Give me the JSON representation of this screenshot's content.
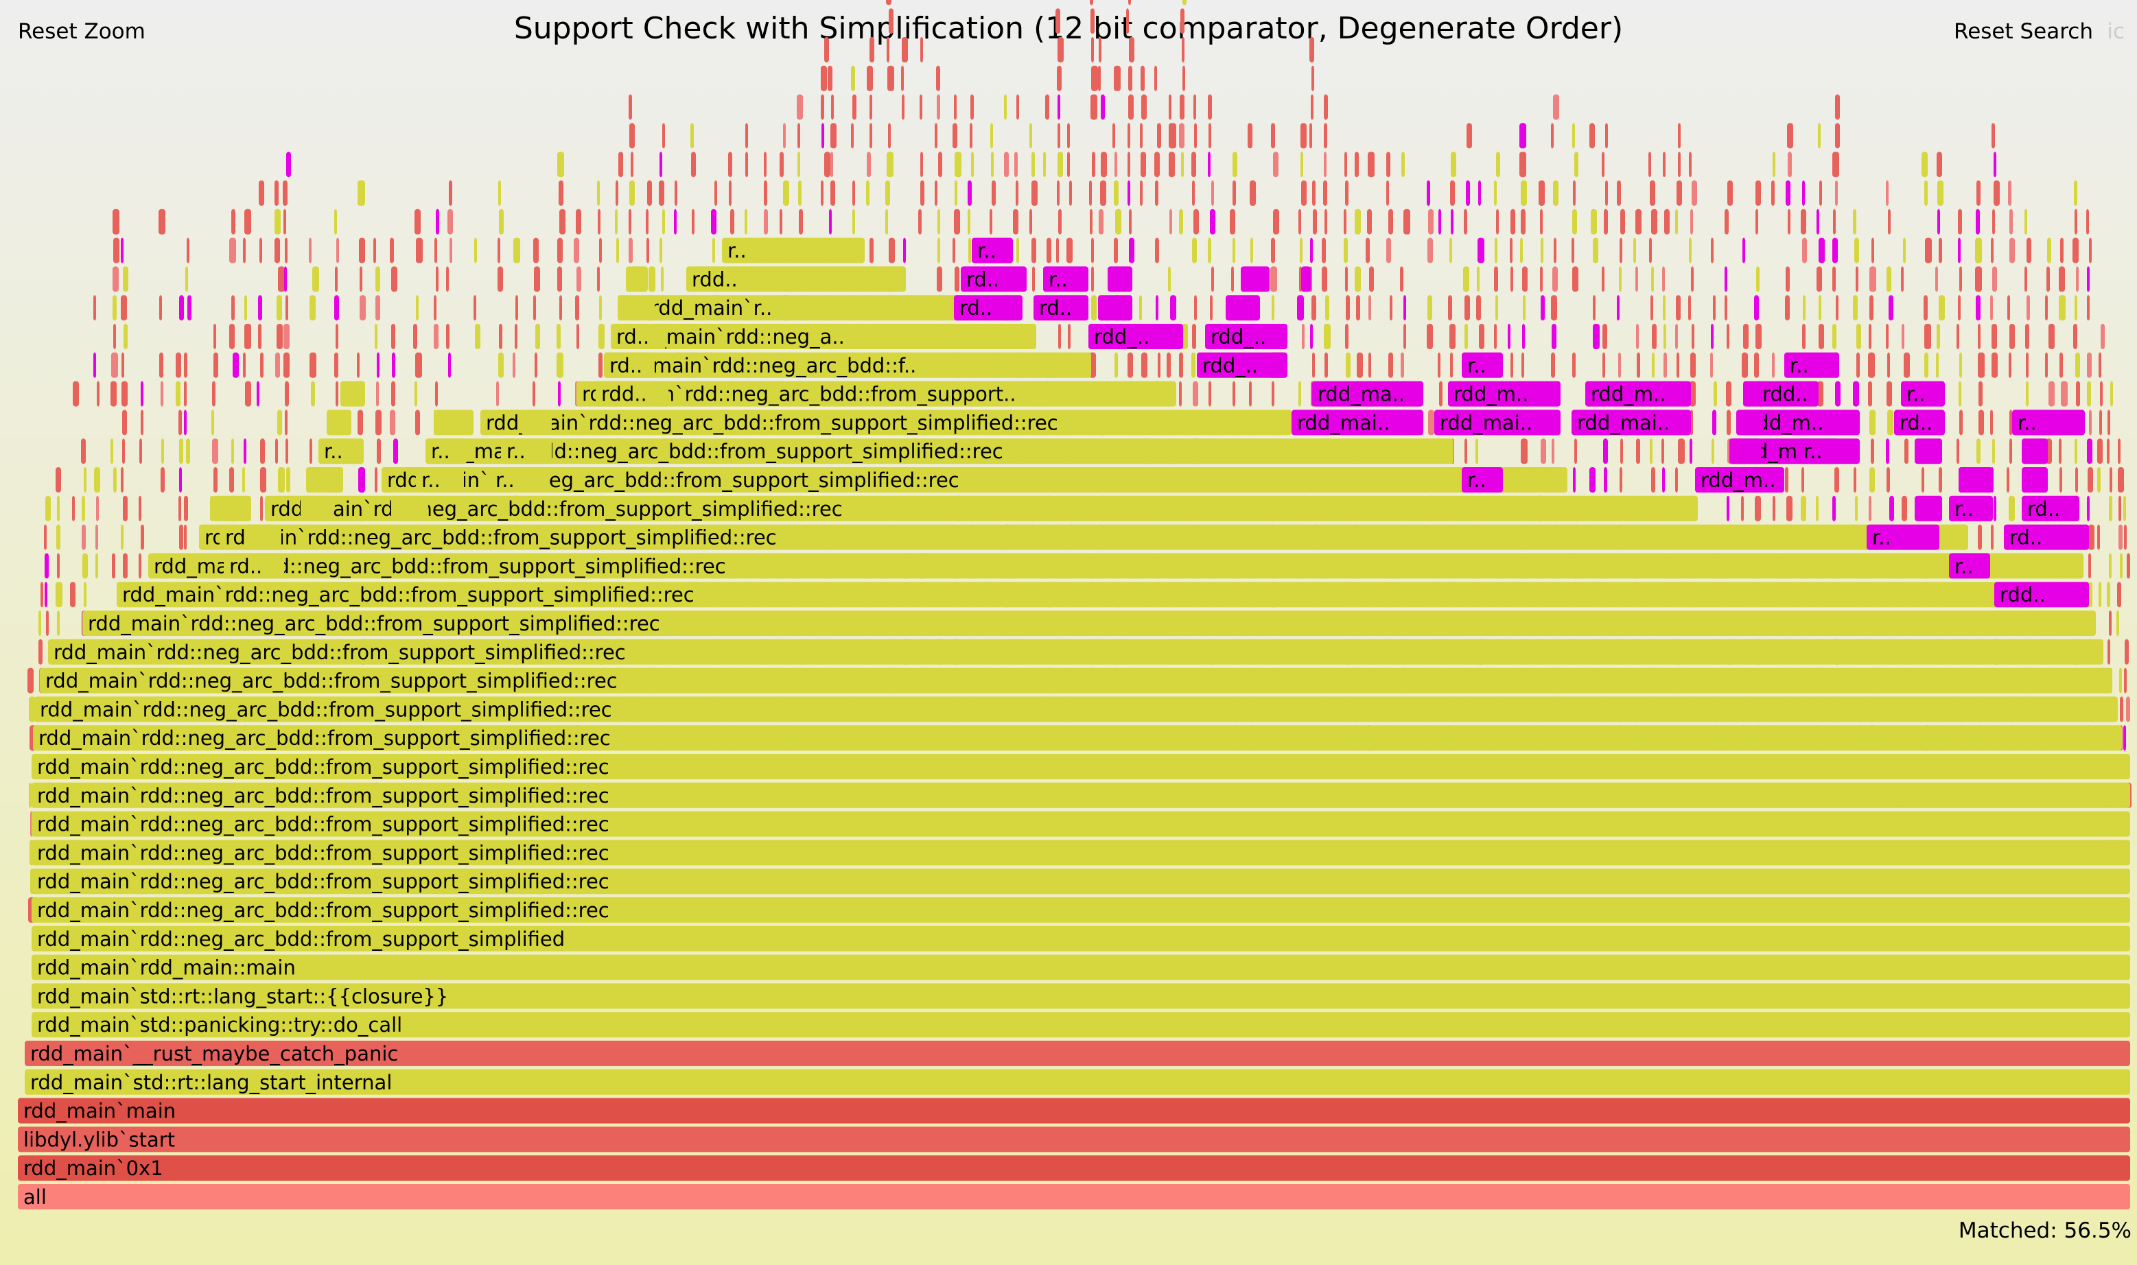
{
  "title": "Support Check with Simplification (12 bit comparator, Degenerate Order)",
  "controls": {
    "reset_zoom": "Reset Zoom",
    "reset_search": "Reset Search",
    "ic": "ic"
  },
  "status": {
    "matched": "Matched: 56.5%"
  },
  "colors": {
    "yellow": "#d6d63e",
    "red": "#e8625c",
    "red_dark": "#de5048",
    "salmon": "#fc817b",
    "magenta": "#e600e6",
    "pink": "#ee8080"
  },
  "frames": [
    {
      "d": 0,
      "l": "all",
      "c": "salmon"
    },
    {
      "d": 1,
      "l": "rdd_main`0x1",
      "c": "red_dark"
    },
    {
      "d": 2,
      "l": "libdyl.ylib`start",
      "c": "red"
    },
    {
      "d": 3,
      "l": "rdd_main`main",
      "c": "red_dark"
    },
    {
      "d": 4,
      "l": "rdd_main`std::rt::lang_start_internal",
      "c": "yellow"
    },
    {
      "d": 5,
      "l": "rdd_main`__rust_maybe_catch_panic",
      "c": "red"
    },
    {
      "d": 6,
      "l": "rdd_main`std::panicking::try::do_call",
      "c": "yellow"
    },
    {
      "d": 7,
      "l": "rdd_main`std::rt::lang_start::{{closure}}",
      "c": "yellow"
    },
    {
      "d": 8,
      "l": "rdd_main`rdd_main::main",
      "c": "yellow"
    },
    {
      "d": 9,
      "l": "rdd_main`rdd::neg_arc_bdd::from_support_simplified",
      "c": "yellow"
    },
    {
      "d": 10,
      "l": "rdd_main`rdd::neg_arc_bdd::from_support_simplified::rec",
      "c": "yellow"
    },
    {
      "d": 11,
      "l": "rdd_main`rdd::neg_arc_bdd::from_support_simplified::rec",
      "c": "yellow"
    },
    {
      "d": 12,
      "l": "rdd_main`rdd::neg_arc_bdd::from_support_simplified::rec",
      "c": "yellow"
    },
    {
      "d": 13,
      "l": "rdd_main`rdd::neg_arc_bdd::from_support_simplified::rec",
      "c": "yellow"
    },
    {
      "d": 14,
      "l": "rdd_main`rdd::neg_arc_bdd::from_support_simplified::rec",
      "c": "yellow"
    },
    {
      "d": 15,
      "l": "rdd_main`rdd::neg_arc_bdd::from_support_simplified::rec",
      "c": "yellow"
    },
    {
      "d": 16,
      "l": "rdd_main`rdd::neg_arc_bdd::from_support_simplified::rec",
      "c": "yellow"
    },
    {
      "d": 17,
      "l": "rdd_main`rdd::neg_arc_bdd::from_support_simplified::rec",
      "c": "yellow"
    },
    {
      "d": 18,
      "l": "rdd_main`rdd::neg_arc_bdd::from_support_simplified::rec",
      "c": "yellow"
    },
    {
      "d": 19,
      "l": "rdd_main`rdd::neg_arc_bdd::from_support_simplified::rec",
      "c": "yellow"
    },
    {
      "d": 20,
      "l": "rdd_main`rdd::neg_arc_bdd::from_support_simplified::rec",
      "c": "yellow"
    },
    {
      "d": 21,
      "l": "rdd_main`rdd::neg_arc_bdd::from_support_simplified::rec",
      "c": "yellow"
    },
    {
      "d": 22,
      "l": "rdd_main`rdd::neg_arc_bdd::from_support_simplified::rec",
      "c": "yellow"
    },
    {
      "d": 23,
      "l": "rdd_main`rdd::neg_arc_bdd::from_support_simplified::rec",
      "c": "yellow"
    },
    {
      "d": 24,
      "l": "rdd_main`rdd::neg_arc_bdd::from_support_simplified::rec",
      "c": "yellow"
    },
    {
      "d": 25,
      "l": "rdd_main`rdd::neg_arc_bdd::from_support_simplified::rec",
      "c": "yellow"
    },
    {
      "d": 26,
      "l": "rdd_main`rdd::neg_arc_bdd::from_support_simplified::rec",
      "c": "yellow"
    },
    {
      "d": 27,
      "l": "rdd_main`rdd::neg_arc_bdd::from_support_simplified::rec",
      "c": "yellow"
    },
    {
      "d": 28,
      "l": "rdd_main`rdd::neg_arc_bdd::from_support..",
      "c": "yellow"
    },
    {
      "d": 29,
      "l": "rdd_main`rdd::neg_arc_bdd::f..",
      "c": "yellow"
    },
    {
      "d": 30,
      "l": "rdd_main`rdd::neg_a..",
      "c": "yellow"
    },
    {
      "d": 31,
      "l": "rdd_main`r..",
      "c": "yellow"
    },
    {
      "d": 32,
      "l": "rdd..",
      "c": "yellow"
    },
    {
      "d": 33,
      "l": "r..",
      "c": "yellow"
    },
    {
      "d": 27,
      "l": "rdd_mai..",
      "c": "magenta"
    },
    {
      "d": 28,
      "l": "rdd_ma..",
      "c": "magenta"
    },
    {
      "d": 27,
      "l": "rdd_mai..",
      "c": "magenta"
    },
    {
      "d": 28,
      "l": "rdd_m..",
      "c": "magenta"
    },
    {
      "d": 29,
      "l": "rdd_..",
      "c": "magenta"
    },
    {
      "d": 27,
      "l": "rdd_mai..",
      "c": "magenta"
    },
    {
      "d": 28,
      "l": "rdd_m..",
      "c": "magenta"
    },
    {
      "d": 25,
      "l": "rdd_main`r..",
      "c": "magenta"
    },
    {
      "d": 26,
      "l": "rdd_ma..",
      "c": "magenta"
    },
    {
      "d": 27,
      "l": "rdd_m..",
      "c": "magenta"
    },
    {
      "d": 28,
      "l": "rdd..",
      "c": "magenta"
    },
    {
      "d": 29,
      "l": "r..",
      "c": "magenta"
    },
    {
      "d": 26,
      "l": "rdd_main..",
      "c": "magenta"
    },
    {
      "d": 27,
      "l": "rdd_ma..",
      "c": "magenta"
    },
    {
      "d": 28,
      "l": "rdd_m..",
      "c": "magenta"
    },
    {
      "d": 24,
      "l": "rdd..",
      "c": "magenta"
    },
    {
      "d": 23,
      "l": "r..",
      "c": "magenta"
    },
    {
      "d": 22,
      "l": "rdd..",
      "c": "magenta"
    },
    {
      "d": 21,
      "l": "rdd..",
      "c": "magenta"
    },
    {
      "d": 24,
      "l": "rd..",
      "c": "magenta"
    },
    {
      "d": 25,
      "l": "rd..",
      "c": "magenta"
    },
    {
      "d": 26,
      "l": "r..",
      "c": "magenta"
    },
    {
      "d": 27,
      "l": "r..",
      "c": "magenta"
    },
    {
      "d": 23,
      "l": "rd..",
      "c": "magenta"
    },
    {
      "d": 24,
      "l": "rd..",
      "c": "magenta"
    },
    {
      "d": 25,
      "l": "l..",
      "c": "magenta"
    },
    {
      "d": 26,
      "l": "l..",
      "c": "magenta"
    },
    {
      "d": 25,
      "l": "rdd_..",
      "c": "magenta"
    },
    {
      "d": 26,
      "l": "rd..",
      "c": "magenta"
    },
    {
      "d": 27,
      "l": "rd..",
      "c": "magenta"
    },
    {
      "d": 28,
      "l": "r..",
      "c": "magenta"
    },
    {
      "d": 24,
      "l": "r..",
      "c": "yellow"
    },
    {
      "d": 23,
      "l": "rd..",
      "c": "yellow"
    },
    {
      "d": 22,
      "l": "rd..",
      "c": "yellow"
    },
    {
      "d": 23,
      "l": "r..",
      "c": "yellow"
    },
    {
      "d": 24,
      "l": "rd..",
      "c": "yellow"
    },
    {
      "d": 25,
      "l": "rd..",
      "c": "yellow"
    },
    {
      "d": 26,
      "l": "r..",
      "c": "yellow"
    },
    {
      "d": 27,
      "l": "rd..",
      "c": "yellow"
    },
    {
      "d": 28,
      "l": "r..",
      "c": "yellow"
    },
    {
      "d": 24,
      "l": "rd..",
      "c": "yellow"
    },
    {
      "d": 25,
      "l": "rd..",
      "c": "yellow"
    },
    {
      "d": 26,
      "l": "rd..",
      "c": "yellow"
    },
    {
      "d": 27,
      "l": "r..",
      "c": "yellow"
    },
    {
      "d": 25,
      "l": "r..",
      "c": "yellow"
    },
    {
      "d": 26,
      "l": "r..",
      "c": "yellow"
    },
    {
      "d": 27,
      "l": "r..",
      "c": "yellow"
    },
    {
      "d": 28,
      "l": "rdd..",
      "c": "yellow"
    },
    {
      "d": 29,
      "l": "rd..",
      "c": "yellow"
    },
    {
      "d": 30,
      "l": "rd..",
      "c": "yellow"
    },
    {
      "d": 31,
      "l": "rd..",
      "c": "yellow"
    },
    {
      "d": 32,
      "l": "r..",
      "c": "yellow"
    },
    {
      "d": 31,
      "l": "rd..",
      "c": "magenta"
    },
    {
      "d": 32,
      "l": "rd..",
      "c": "magenta"
    },
    {
      "d": 33,
      "l": "r..",
      "c": "magenta"
    },
    {
      "d": 31,
      "l": "rd..",
      "c": "magenta"
    },
    {
      "d": 32,
      "l": "r..",
      "c": "magenta"
    },
    {
      "d": 30,
      "l": "rdd_..",
      "c": "magenta"
    },
    {
      "d": 31,
      "l": "rd..",
      "c": "magenta"
    },
    {
      "d": 32,
      "l": "r..",
      "c": "magenta"
    },
    {
      "d": 29,
      "l": "rdd_..",
      "c": "magenta"
    },
    {
      "d": 30,
      "l": "rdd_..",
      "c": "magenta"
    },
    {
      "d": 31,
      "l": "rd..",
      "c": "magenta"
    },
    {
      "d": 32,
      "l": "r..",
      "c": "magenta"
    },
    {
      "d": 29,
      "l": "rdd_m..",
      "c": "magenta"
    },
    {
      "d": 30,
      "l": "rdd..",
      "c": "magenta"
    },
    {
      "d": 31,
      "l": "rd..",
      "c": "magenta"
    },
    {
      "d": 32,
      "l": "r..",
      "c": "magenta"
    }
  ]
}
